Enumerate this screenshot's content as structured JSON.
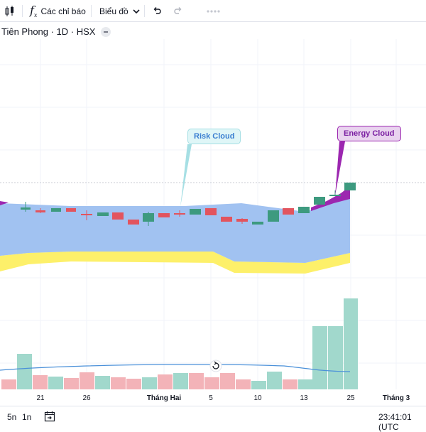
{
  "toolbar": {
    "indicators_label": "Các chỉ báo",
    "chart_label": "Biểu đồ"
  },
  "legend": {
    "symbol": "Tiên Phong · 1D · HSX"
  },
  "annotations": {
    "risk_cloud": "Risk Cloud",
    "energy_cloud": "Energy Cloud"
  },
  "x_axis_labels": [
    {
      "label": "21",
      "pos": 57
    },
    {
      "label": "26",
      "pos": 122
    },
    {
      "label": "Tháng Hai",
      "pos": 231
    },
    {
      "label": "5",
      "pos": 297
    },
    {
      "label": "10",
      "pos": 363
    },
    {
      "label": "13",
      "pos": 428
    },
    {
      "label": "25",
      "pos": 494
    },
    {
      "label": "Tháng 3",
      "pos": 558
    }
  ],
  "bottom": {
    "range_5n": "5n",
    "range_1n": "1n",
    "time": "23:41:01 (UTC"
  },
  "colors": {
    "up": "#3d9a7f",
    "down": "#e2545e",
    "cloud_blue": "#a1c2f1",
    "cloud_yellow": "#fdf06a",
    "energy": "#9c27b0",
    "vol_up": "#a1d8cc",
    "vol_down": "#f3b3b8",
    "ma_line": "#4a90d9"
  },
  "icons": [
    "candles-icon",
    "fx-icon",
    "chevron-down-icon",
    "undo-icon",
    "redo-icon",
    "more-icon",
    "reset-icon",
    "calendar-goto-icon"
  ]
}
